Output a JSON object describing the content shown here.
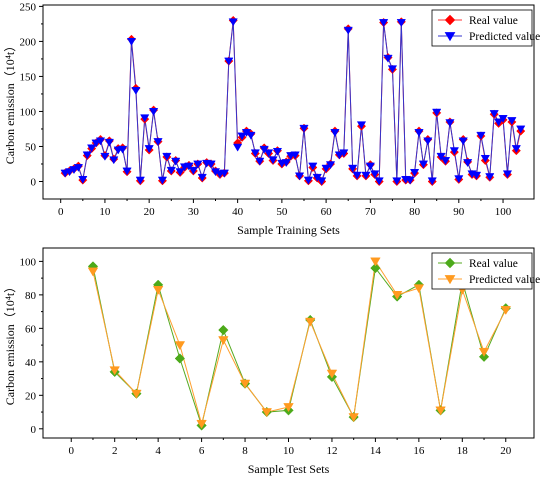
{
  "chart_data": [
    {
      "type": "line",
      "title": "",
      "xlabel": "Sample Training Sets",
      "ylabel": "Carbon emission（10⁴t）",
      "xlim": [
        -4,
        107
      ],
      "ylim": [
        -25,
        252
      ],
      "xticks": [
        0,
        10,
        20,
        30,
        40,
        50,
        60,
        70,
        80,
        90,
        100
      ],
      "yticks": [
        0,
        50,
        100,
        150,
        200,
        250
      ],
      "legend_position": "top-right",
      "grid": false,
      "colors": {
        "real": "#ff0000",
        "predicted": "#0000ff",
        "line_real": "#ff3333",
        "line_predicted": "#3333cc"
      },
      "markers": {
        "real": "diamond",
        "predicted": "triangle-down"
      },
      "series": [
        {
          "name": "Real value",
          "x": [
            1,
            2,
            3,
            4,
            5,
            6,
            7,
            8,
            9,
            10,
            11,
            12,
            13,
            14,
            15,
            16,
            17,
            18,
            19,
            20,
            21,
            22,
            23,
            24,
            25,
            26,
            27,
            28,
            29,
            30,
            31,
            32,
            33,
            34,
            35,
            36,
            37,
            38,
            39,
            40,
            41,
            42,
            43,
            44,
            45,
            46,
            47,
            48,
            49,
            50,
            51,
            52,
            53,
            54,
            55,
            56,
            57,
            58,
            59,
            60,
            61,
            62,
            63,
            64,
            65,
            66,
            67,
            68,
            69,
            70,
            71,
            72,
            73,
            74,
            75,
            76,
            77,
            78,
            79,
            80,
            81,
            82,
            83,
            84,
            85,
            86,
            87,
            88,
            89,
            90,
            91,
            92,
            93,
            94,
            95,
            96,
            97,
            98,
            99,
            100,
            101,
            102,
            103,
            104
          ],
          "values": [
            12,
            15,
            18,
            22,
            2,
            37,
            47,
            55,
            60,
            37,
            58,
            32,
            47,
            48,
            14,
            203,
            133,
            1,
            89,
            45,
            102,
            57,
            1,
            35,
            15,
            30,
            13,
            20,
            23,
            15,
            25,
            5,
            27,
            25,
            15,
            10,
            12,
            172,
            230,
            55,
            63,
            72,
            68,
            40,
            29,
            48,
            40,
            30,
            44,
            25,
            28,
            36,
            37,
            8,
            76,
            1,
            20,
            5,
            0,
            18,
            25,
            72,
            38,
            40,
            218,
            18,
            8,
            79,
            8,
            24,
            10,
            0,
            227,
            177,
            160,
            0,
            228,
            2,
            2,
            12,
            72,
            24,
            60,
            0,
            98,
            35,
            29,
            85,
            42,
            3,
            60,
            28,
            10,
            8,
            65,
            30,
            6,
            96,
            83,
            88,
            10,
            85,
            44,
            72
          ]
        },
        {
          "name": "Predicted value",
          "x": [
            1,
            2,
            3,
            4,
            5,
            6,
            7,
            8,
            9,
            10,
            11,
            12,
            13,
            14,
            15,
            16,
            17,
            18,
            19,
            20,
            21,
            22,
            23,
            24,
            25,
            26,
            27,
            28,
            29,
            30,
            31,
            32,
            33,
            34,
            35,
            36,
            37,
            38,
            39,
            40,
            41,
            42,
            43,
            44,
            45,
            46,
            47,
            48,
            49,
            50,
            51,
            52,
            53,
            54,
            55,
            56,
            57,
            58,
            59,
            60,
            61,
            62,
            63,
            64,
            65,
            66,
            67,
            68,
            69,
            70,
            71,
            72,
            73,
            74,
            75,
            76,
            77,
            78,
            79,
            80,
            81,
            82,
            83,
            84,
            85,
            86,
            87,
            88,
            89,
            90,
            91,
            92,
            93,
            94,
            95,
            96,
            97,
            98,
            99,
            100,
            101,
            102,
            103,
            104
          ],
          "values": [
            12,
            14,
            17,
            20,
            3,
            38,
            48,
            55,
            58,
            36,
            56,
            31,
            45,
            46,
            15,
            200,
            130,
            2,
            91,
            47,
            100,
            57,
            2,
            36,
            16,
            29,
            14,
            21,
            22,
            16,
            25,
            6,
            26,
            25,
            14,
            11,
            12,
            172,
            228,
            49,
            65,
            70,
            66,
            41,
            29,
            46,
            41,
            31,
            43,
            26,
            27,
            37,
            38,
            8,
            76,
            2,
            22,
            6,
            1,
            19,
            24,
            70,
            38,
            41,
            216,
            19,
            9,
            81,
            9,
            22,
            11,
            1,
            227,
            176,
            161,
            1,
            227,
            3,
            2,
            13,
            70,
            25,
            58,
            1,
            99,
            36,
            30,
            84,
            44,
            4,
            58,
            27,
            11,
            9,
            66,
            33,
            7,
            97,
            85,
            90,
            11,
            87,
            47,
            75
          ]
        }
      ]
    },
    {
      "type": "line",
      "title": "",
      "xlabel": "Sample Test Sets",
      "ylabel": "Carbon emission（10⁴t）",
      "xlim": [
        -1.3,
        21.3
      ],
      "ylim": [
        -5.5,
        108
      ],
      "xticks": [
        0,
        2,
        4,
        6,
        8,
        10,
        12,
        14,
        16,
        18,
        20
      ],
      "yticks": [
        0,
        20,
        40,
        60,
        80,
        100
      ],
      "legend_position": "top-right",
      "grid": false,
      "colors": {
        "real": "#4caa1a",
        "predicted": "#ff9a1f",
        "line_real": "#55aa22",
        "line_predicted": "#ffa030"
      },
      "markers": {
        "real": "diamond",
        "predicted": "triangle-down"
      },
      "series": [
        {
          "name": "Real value",
          "x": [
            1,
            2,
            3,
            4,
            5,
            6,
            7,
            8,
            9,
            10,
            11,
            12,
            13,
            14,
            15,
            16,
            17,
            18,
            19,
            20
          ],
          "values": [
            97,
            34,
            21,
            86,
            42,
            2,
            59,
            27,
            10,
            11,
            65,
            31,
            7,
            96,
            79,
            86,
            11,
            88,
            43,
            72
          ]
        },
        {
          "name": "Predicted value",
          "x": [
            1,
            2,
            3,
            4,
            5,
            6,
            7,
            8,
            9,
            10,
            11,
            12,
            13,
            14,
            15,
            16,
            17,
            18,
            19,
            20
          ],
          "values": [
            94,
            35,
            21,
            83,
            50,
            3,
            53,
            27,
            10,
            13,
            64,
            33,
            7,
            100,
            80,
            84,
            11,
            83,
            46,
            71
          ]
        }
      ]
    }
  ]
}
